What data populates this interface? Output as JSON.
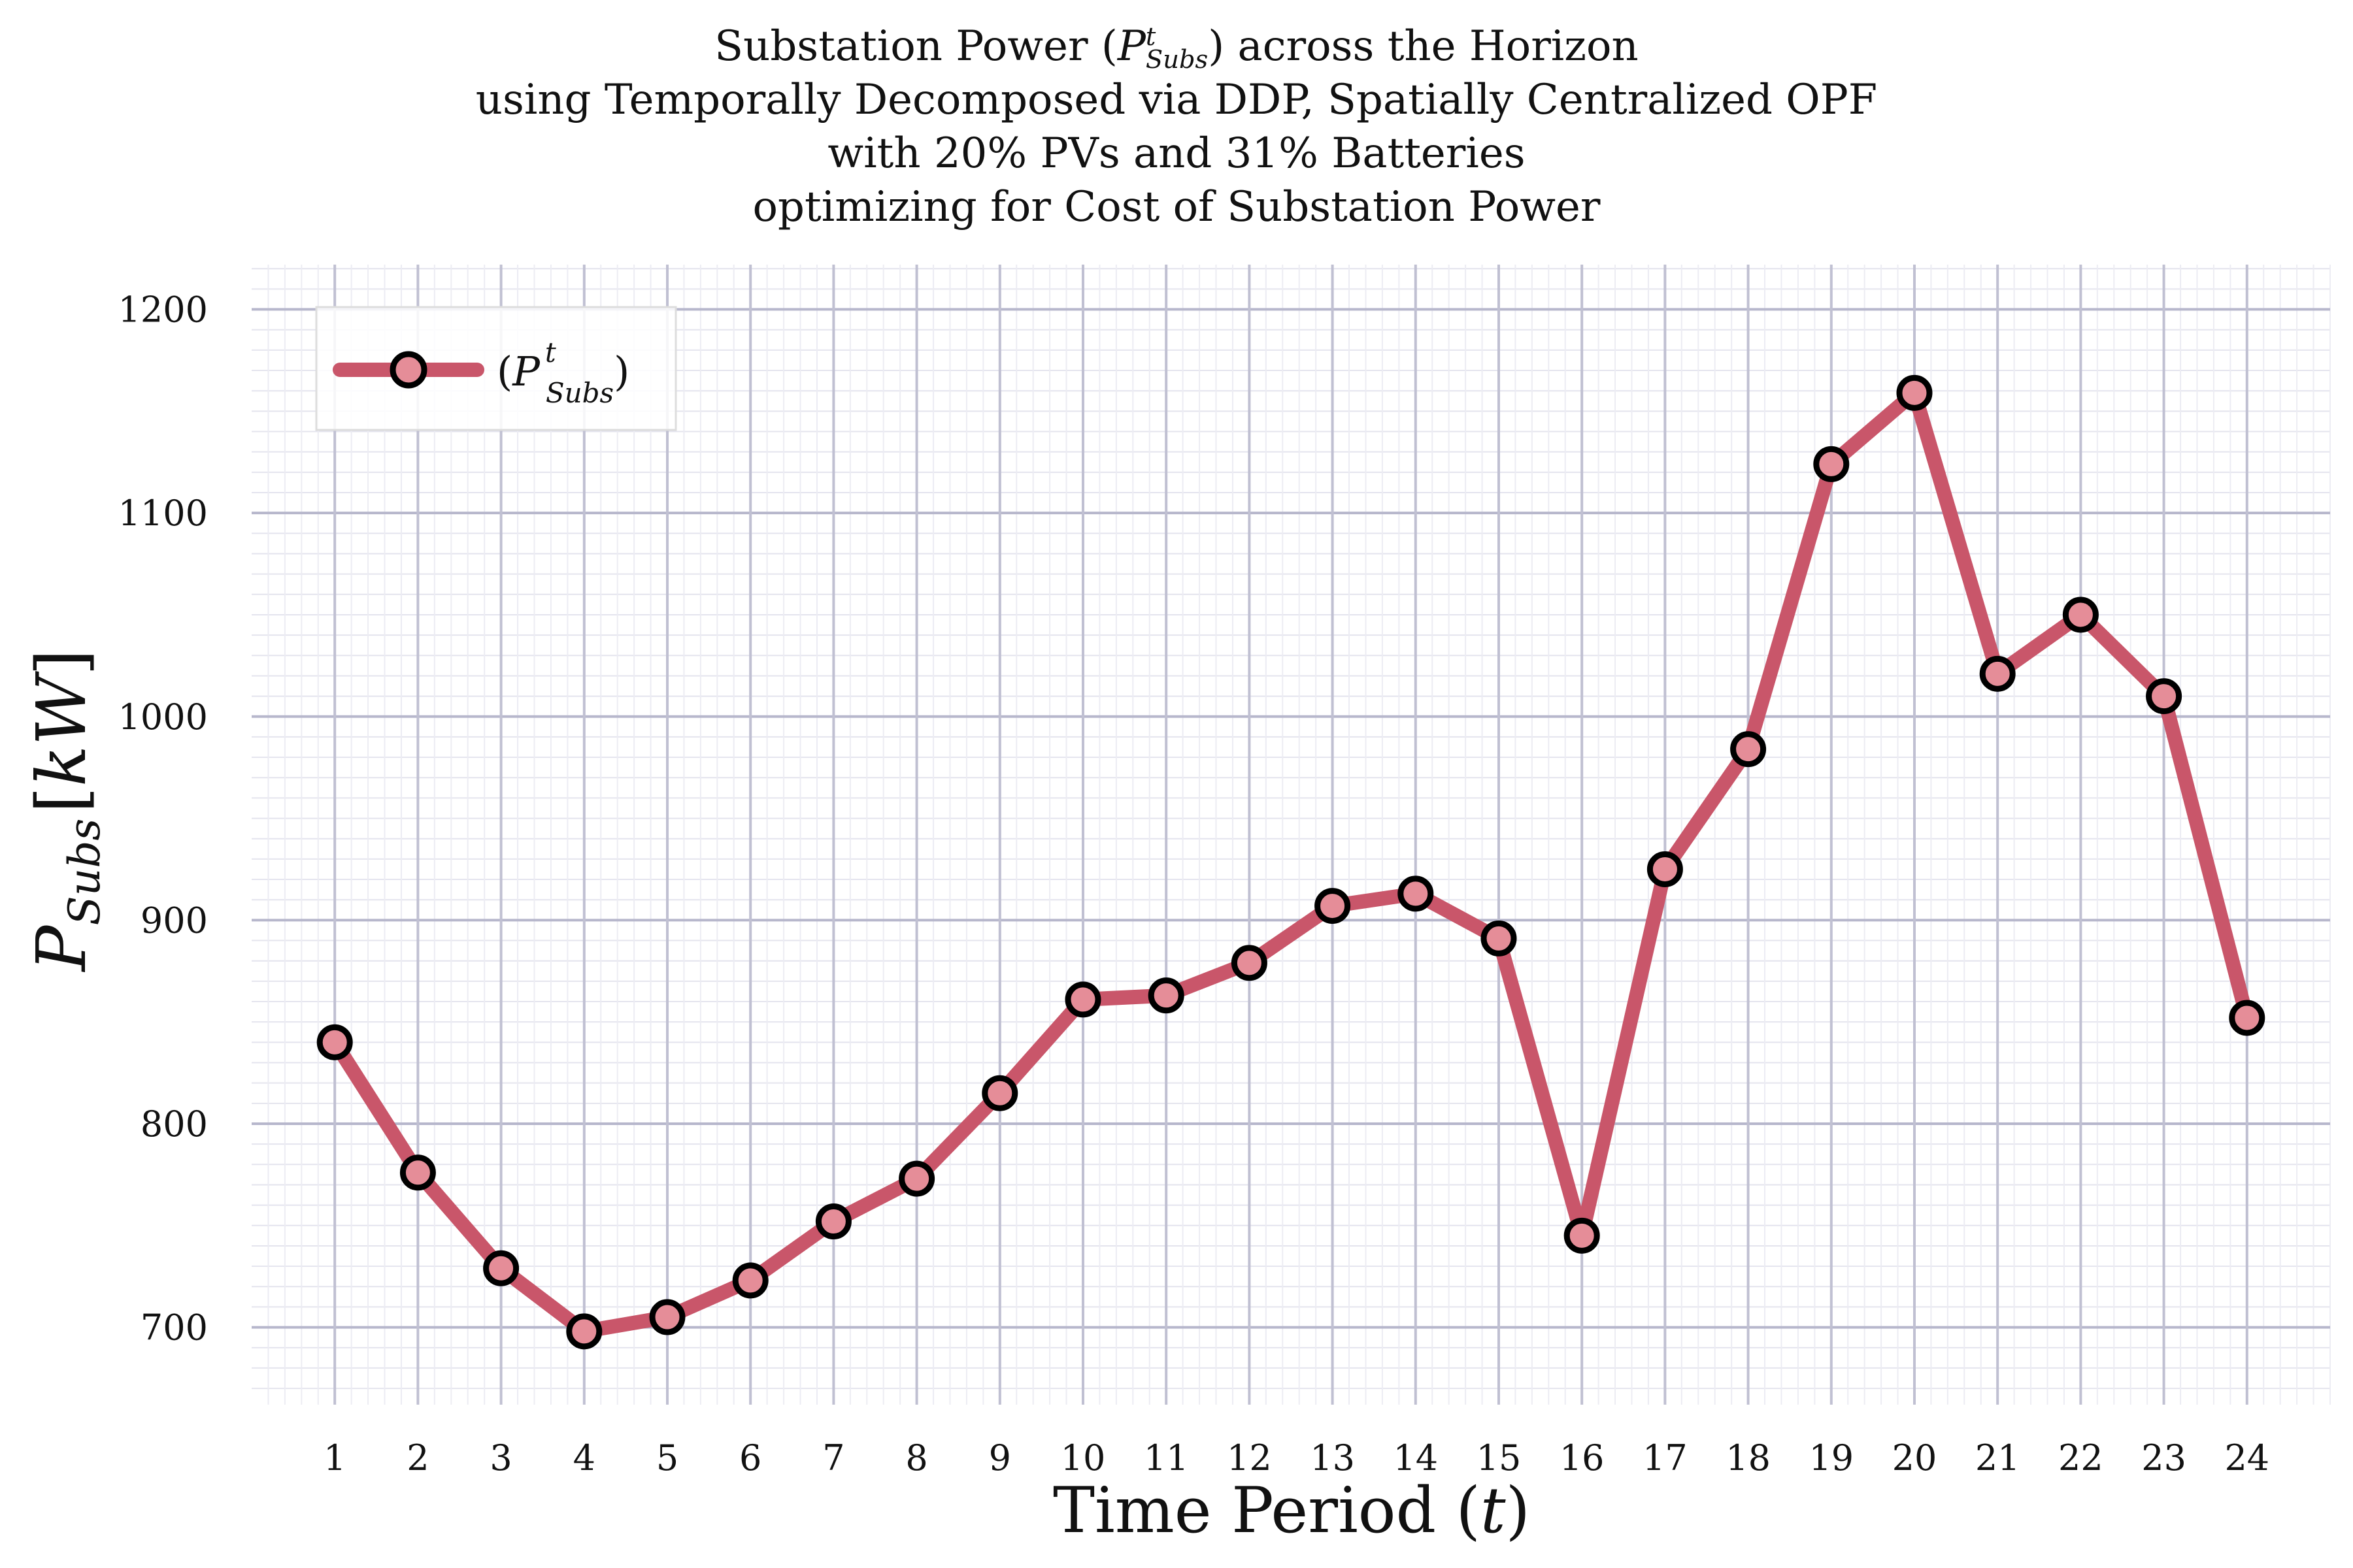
{
  "chart_data": {
    "type": "line",
    "title_lines": [
      "Substation Power (P_Subs^t) across the Horizon",
      "using Temporally Decomposed via DDP, Spatially Centralized OPF",
      "with 20% PVs and 31% Batteries",
      "optimizing for Cost of Substation Power"
    ],
    "xlabel": "Time Period (t)",
    "ylabel": "P_Subs [kW]",
    "x": [
      1,
      2,
      3,
      4,
      5,
      6,
      7,
      8,
      9,
      10,
      11,
      12,
      13,
      14,
      15,
      16,
      17,
      18,
      19,
      20,
      21,
      22,
      23,
      24
    ],
    "xticks": [
      "1",
      "2",
      "3",
      "4",
      "5",
      "6",
      "7",
      "8",
      "9",
      "10",
      "11",
      "12",
      "13",
      "14",
      "15",
      "16",
      "17",
      "18",
      "19",
      "20",
      "21",
      "22",
      "23",
      "24"
    ],
    "yticks": [
      700,
      800,
      900,
      1000,
      1100,
      1200
    ],
    "ylim": [
      662,
      1222
    ],
    "xlim": [
      0.0,
      25.0
    ],
    "grid": true,
    "legend_placement": "top-left",
    "series": [
      {
        "name": "(P_Subs^t)",
        "color": "#c9566a",
        "marker_face": "#e58d98",
        "marker_edge": "#000000",
        "values": [
          840,
          776,
          729,
          698,
          705,
          723,
          752,
          773,
          815,
          861,
          863,
          879,
          907,
          913,
          891,
          745,
          925,
          984,
          1124,
          1159,
          1021,
          1050,
          1010,
          852
        ]
      }
    ]
  }
}
